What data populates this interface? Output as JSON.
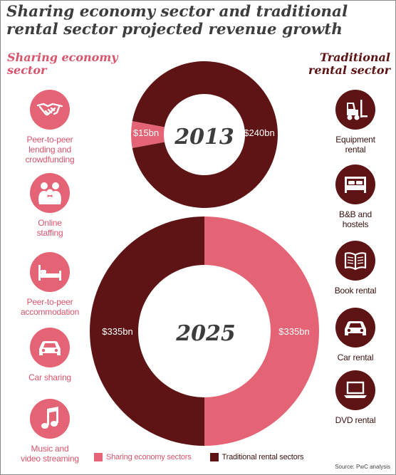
{
  "title": "Sharing economy sector and traditional\nrental sector projected revenue growth",
  "left_header": "Sharing economy\nsector",
  "right_header": "Traditional\nrental sector",
  "left_items": [
    {
      "label": "Peer-to-peer\nlending and\ncrowdfunding",
      "icon": "handshake-icon"
    },
    {
      "label": "Online\nstaffing",
      "icon": "people-icon"
    },
    {
      "label": "Peer-to-peer\naccommodation",
      "icon": "bed-icon"
    },
    {
      "label": "Car sharing",
      "icon": "car-icon"
    },
    {
      "label": "Music and\nvideo streaming",
      "icon": "music-note-icon"
    }
  ],
  "right_items": [
    {
      "label": "Equipment\nrental",
      "icon": "forklift-icon"
    },
    {
      "label": "B&B and\nhostels",
      "icon": "bed-icon"
    },
    {
      "label": "Book rental",
      "icon": "book-icon"
    },
    {
      "label": "Car rental",
      "icon": "car-icon"
    },
    {
      "label": "DVD rental",
      "icon": "laptop-icon"
    }
  ],
  "colors": {
    "sharing": "#e46375",
    "traditional": "#5e1414"
  },
  "chart_data": [
    {
      "type": "pie",
      "title": "2013",
      "categories": [
        "Sharing economy sectors",
        "Traditional rental sectors"
      ],
      "values": [
        15,
        240
      ],
      "labels": [
        "$15bn",
        "$240bn"
      ]
    },
    {
      "type": "pie",
      "title": "2025",
      "categories": [
        "Sharing economy sectors",
        "Traditional rental sectors"
      ],
      "values": [
        335,
        335
      ],
      "labels": [
        "$335bn",
        "$335bn"
      ]
    }
  ],
  "legend": [
    "Sharing economy sectors",
    "Traditional rental sectors"
  ],
  "source": "Source: PwC analysis"
}
